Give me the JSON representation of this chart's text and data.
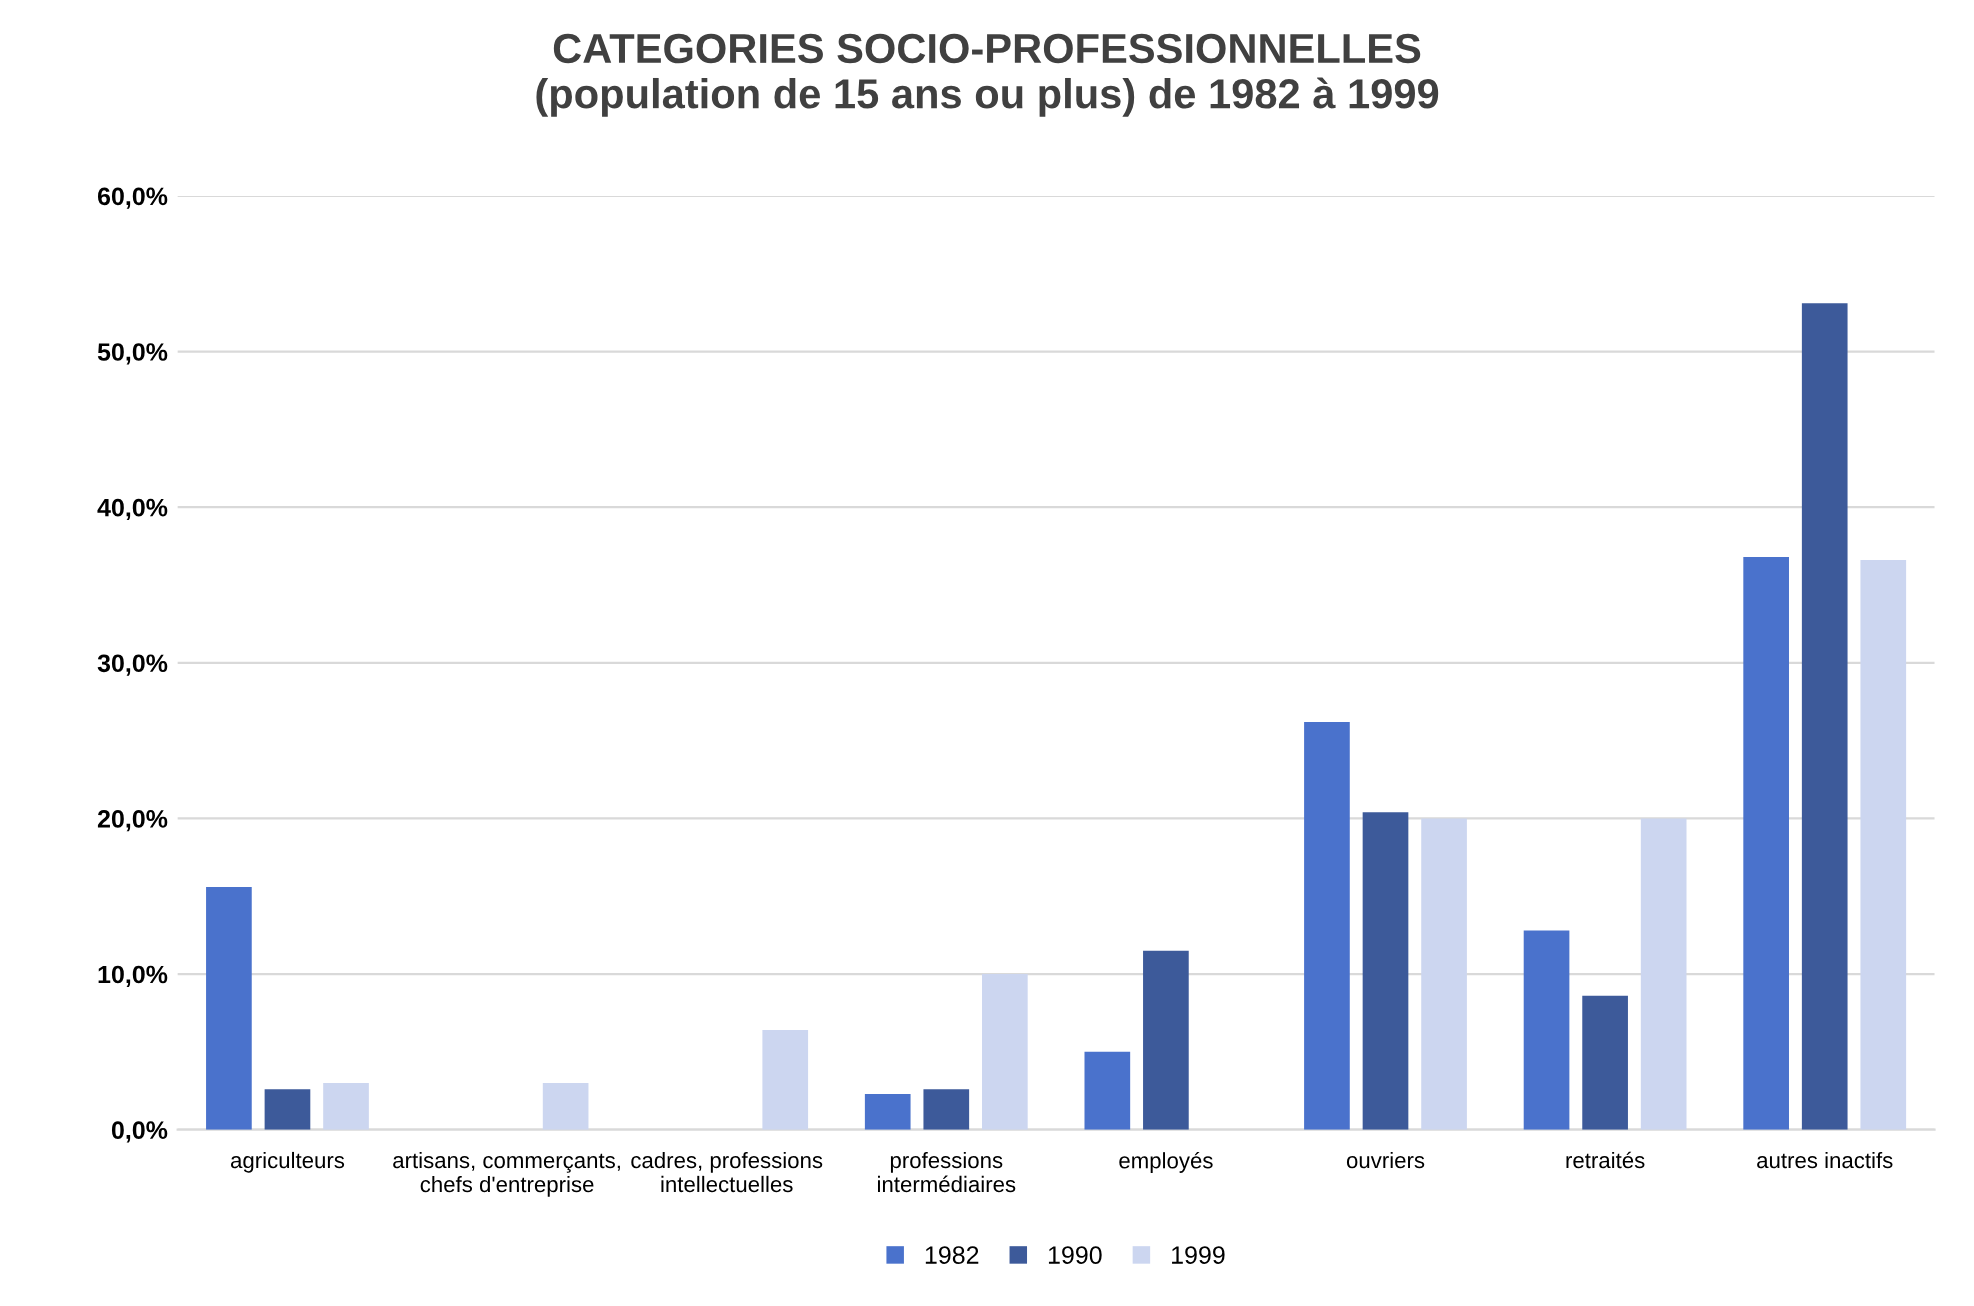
{
  "chart_data": {
    "type": "bar",
    "title": "CATEGORIES SOCIO-PROFESSIONNELLES\n(population de 15 ans ou plus) de 1982 à 1999",
    "categories": [
      "agriculteurs",
      "artisans, commerçants,\nchefs d'entreprise",
      "cadres, professions\nintellectuelles",
      "professions\nintermédiaires",
      "employés",
      "ouvriers",
      "retraités",
      "autres inactifs"
    ],
    "series": [
      {
        "name": "1982",
        "color": "#4a72cc",
        "values": [
          15.6,
          null,
          null,
          2.3,
          5.0,
          26.2,
          12.8,
          36.8
        ]
      },
      {
        "name": "1990",
        "color": "#3d5a9a",
        "values": [
          2.6,
          null,
          null,
          2.6,
          11.5,
          20.4,
          8.6,
          53.1
        ]
      },
      {
        "name": "1999",
        "color": "#ccd6f0",
        "values": [
          3.0,
          3.0,
          6.4,
          10.0,
          null,
          20.0,
          20.0,
          36.6
        ]
      }
    ],
    "ylim": [
      0,
      60
    ],
    "yticks": [
      {
        "value": 0,
        "label": "0,0%"
      },
      {
        "value": 10,
        "label": "10,0%"
      },
      {
        "value": 20,
        "label": "20,0%"
      },
      {
        "value": 30,
        "label": "30,0%"
      },
      {
        "value": 40,
        "label": "40,0%"
      },
      {
        "value": 50,
        "label": "50,0%"
      },
      {
        "value": 60,
        "label": "60,0%"
      }
    ],
    "grid": "y",
    "legend": "bottom"
  }
}
